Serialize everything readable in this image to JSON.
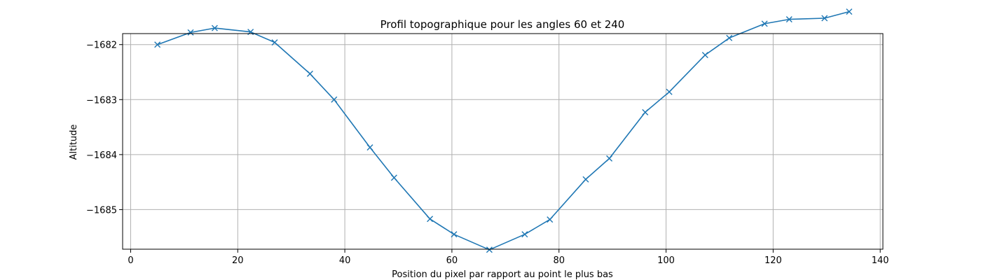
{
  "chart_data": {
    "type": "line",
    "title": "Profil topographique pour les angles 60 et 240",
    "xlabel": "Position du pixel par rapport au point le plus bas",
    "ylabel": "Altitude",
    "xlim": [
      -1.5,
      140.5
    ],
    "ylim": [
      -1685.72,
      -1681.8
    ],
    "xticks": [
      0,
      20,
      40,
      60,
      80,
      100,
      120,
      140
    ],
    "xtick_labels": [
      "0",
      "20",
      "40",
      "60",
      "80",
      "100",
      "120",
      "140"
    ],
    "yticks": [
      -1682,
      -1683,
      -1684,
      -1685
    ],
    "ytick_labels": [
      "−1682",
      "−1683",
      "−1684",
      "−1685"
    ],
    "grid": true,
    "marker": "x",
    "color": "#1f77b4",
    "series": [
      {
        "x": [
          5,
          11.2,
          15.7,
          22.4,
          26.9,
          33.5,
          38,
          44.7,
          49.2,
          55.9,
          60.4,
          67,
          73.6,
          78.3,
          85,
          89.4,
          96.1,
          100.6,
          107.3,
          111.8,
          118.4,
          123,
          129.6,
          134.2
        ],
        "y": [
          -1682.0,
          -1681.78,
          -1681.7,
          -1681.77,
          -1681.96,
          -1682.53,
          -1683.0,
          -1683.87,
          -1684.42,
          -1685.17,
          -1685.45,
          -1685.73,
          -1685.45,
          -1685.18,
          -1684.45,
          -1684.07,
          -1683.23,
          -1682.86,
          -1682.19,
          -1681.88,
          -1681.62,
          -1681.54,
          -1681.52,
          -1681.4
        ]
      }
    ]
  }
}
